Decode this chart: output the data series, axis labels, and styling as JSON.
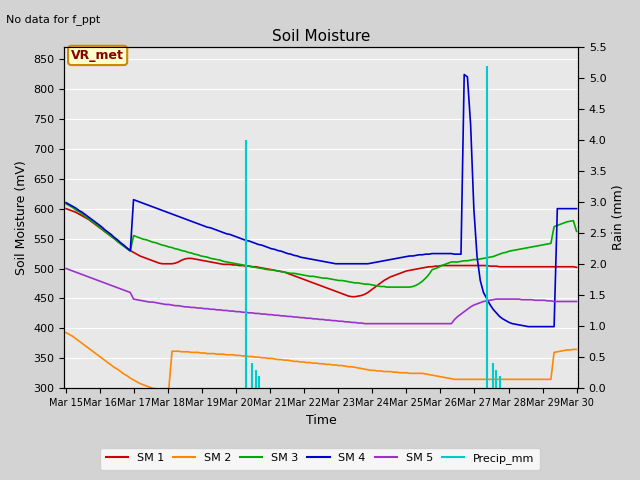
{
  "title": "Soil Moisture",
  "subtitle": "No data for f_ppt",
  "xlabel": "Time",
  "ylabel_left": "Soil Moisture (mV)",
  "ylabel_right": "Rain (mm)",
  "ylim_left": [
    300,
    870
  ],
  "ylim_right": [
    0.0,
    5.5
  ],
  "yticks_left": [
    300,
    350,
    400,
    450,
    500,
    550,
    600,
    650,
    700,
    750,
    800,
    850
  ],
  "yticks_right": [
    0.0,
    0.5,
    1.0,
    1.5,
    2.0,
    2.5,
    3.0,
    3.5,
    4.0,
    4.5,
    5.0,
    5.5
  ],
  "xtick_labels": [
    "Mar 15",
    "Mar 16",
    "Mar 17",
    "Mar 18",
    "Mar 19",
    "Mar 20",
    "Mar 21",
    "Mar 22",
    "Mar 23",
    "Mar 24",
    "Mar 25",
    "Mar 26",
    "Mar 27",
    "Mar 28",
    "Mar 29",
    "Mar 30"
  ],
  "vr_met_label": "VR_met",
  "colors": {
    "SM1": "#cc0000",
    "SM2": "#ff8800",
    "SM3": "#00aa00",
    "SM4": "#0000cc",
    "SM5": "#9933cc",
    "Precip": "#00cccc"
  },
  "num_points": 160,
  "days": 15,
  "SM1": [
    600,
    598,
    596,
    594,
    591,
    588,
    585,
    582,
    578,
    574,
    570,
    566,
    562,
    558,
    554,
    550,
    546,
    542,
    538,
    534,
    530,
    527,
    524,
    521,
    519,
    517,
    515,
    513,
    511,
    509,
    508,
    508,
    508,
    508,
    509,
    511,
    514,
    516,
    517,
    517,
    516,
    515,
    514,
    513,
    512,
    511,
    510,
    509,
    508,
    507,
    507,
    507,
    506,
    506,
    505,
    505,
    504,
    504,
    503,
    503,
    502,
    501,
    500,
    499,
    498,
    497,
    496,
    495,
    494,
    492,
    490,
    488,
    486,
    484,
    482,
    480,
    478,
    476,
    474,
    472,
    470,
    468,
    466,
    464,
    462,
    460,
    458,
    456,
    454,
    453,
    453,
    454,
    455,
    457,
    460,
    464,
    468,
    472,
    476,
    480,
    483,
    486,
    488,
    490,
    492,
    494,
    496,
    497,
    498,
    499,
    500,
    501,
    502,
    503,
    503,
    504,
    504,
    505,
    505,
    505,
    505,
    505,
    505,
    505,
    505,
    505,
    505,
    505,
    505,
    505,
    505,
    505,
    504,
    504,
    504,
    503,
    503,
    503,
    503,
    503,
    503,
    503,
    503,
    503,
    503,
    503,
    503,
    503,
    503,
    503,
    503,
    503,
    503,
    503,
    503,
    503,
    503,
    503,
    503,
    502
  ],
  "SM2": [
    393,
    390,
    387,
    383,
    379,
    375,
    371,
    367,
    363,
    359,
    355,
    351,
    347,
    343,
    339,
    335,
    332,
    328,
    324,
    321,
    317,
    314,
    311,
    308,
    306,
    304,
    302,
    300,
    299,
    299,
    299,
    299,
    300,
    362,
    362,
    362,
    361,
    361,
    361,
    360,
    360,
    360,
    359,
    359,
    358,
    358,
    358,
    357,
    357,
    357,
    356,
    356,
    356,
    355,
    355,
    354,
    354,
    353,
    353,
    352,
    352,
    351,
    351,
    350,
    350,
    349,
    348,
    348,
    347,
    347,
    346,
    345,
    345,
    344,
    344,
    343,
    343,
    342,
    342,
    341,
    341,
    340,
    340,
    339,
    339,
    338,
    338,
    337,
    336,
    336,
    335,
    334,
    333,
    332,
    331,
    330,
    330,
    329,
    329,
    328,
    328,
    328,
    327,
    327,
    326,
    326,
    326,
    325,
    325,
    325,
    325,
    325,
    324,
    323,
    322,
    321,
    320,
    319,
    318,
    317,
    316,
    315,
    315,
    315,
    315,
    315,
    315,
    315,
    315,
    315,
    315,
    315,
    315,
    315,
    315,
    315,
    315,
    315,
    315,
    315,
    315,
    315,
    315,
    315,
    315,
    315,
    315,
    315,
    315,
    315,
    315,
    315,
    360,
    361,
    362,
    363,
    364,
    364,
    365,
    365
  ],
  "SM3": [
    608,
    605,
    602,
    598,
    595,
    591,
    587,
    583,
    579,
    575,
    571,
    567,
    562,
    558,
    554,
    550,
    545,
    541,
    537,
    533,
    529,
    555,
    553,
    551,
    549,
    548,
    546,
    544,
    543,
    541,
    539,
    538,
    536,
    535,
    533,
    532,
    530,
    529,
    527,
    526,
    524,
    523,
    521,
    520,
    519,
    517,
    516,
    515,
    514,
    512,
    511,
    510,
    509,
    508,
    507,
    506,
    505,
    504,
    503,
    502,
    501,
    500,
    499,
    498,
    498,
    497,
    496,
    495,
    494,
    493,
    492,
    492,
    491,
    490,
    489,
    488,
    487,
    487,
    486,
    485,
    484,
    484,
    483,
    482,
    481,
    480,
    480,
    479,
    478,
    477,
    476,
    476,
    475,
    474,
    474,
    473,
    472,
    471,
    470,
    470,
    469,
    469,
    469,
    469,
    469,
    469,
    469,
    469,
    470,
    472,
    475,
    479,
    484,
    490,
    498,
    500,
    502,
    505,
    507,
    509,
    511,
    511,
    511,
    512,
    513,
    513,
    514,
    515,
    515,
    516,
    517,
    518,
    519,
    520,
    522,
    524,
    526,
    527,
    529,
    530,
    531,
    532,
    533,
    534,
    535,
    536,
    537,
    538,
    539,
    540,
    541,
    542,
    570,
    572,
    574,
    576,
    578,
    579,
    580,
    562
  ],
  "SM4": [
    610,
    607,
    604,
    601,
    597,
    594,
    590,
    586,
    582,
    578,
    574,
    570,
    565,
    561,
    557,
    552,
    548,
    543,
    539,
    534,
    530,
    615,
    613,
    611,
    609,
    607,
    605,
    603,
    601,
    599,
    597,
    595,
    593,
    591,
    589,
    587,
    585,
    583,
    581,
    579,
    577,
    575,
    573,
    571,
    569,
    568,
    566,
    564,
    562,
    560,
    558,
    557,
    555,
    553,
    551,
    549,
    547,
    546,
    544,
    542,
    540,
    539,
    537,
    535,
    533,
    532,
    530,
    529,
    527,
    525,
    524,
    522,
    521,
    519,
    518,
    517,
    516,
    515,
    514,
    513,
    512,
    511,
    510,
    509,
    508,
    508,
    508,
    508,
    508,
    508,
    508,
    508,
    508,
    508,
    508,
    509,
    510,
    511,
    512,
    513,
    514,
    515,
    516,
    517,
    518,
    519,
    520,
    521,
    521,
    522,
    523,
    523,
    524,
    524,
    525,
    525,
    525,
    525,
    525,
    525,
    525,
    524,
    524,
    524,
    824,
    820,
    740,
    600,
    520,
    480,
    460,
    450,
    440,
    432,
    426,
    420,
    416,
    413,
    410,
    408,
    407,
    406,
    405,
    404,
    403,
    403,
    403,
    403,
    403,
    403,
    403,
    403,
    403,
    600,
    600,
    600,
    600,
    600,
    600,
    600
  ],
  "SM5": [
    500,
    498,
    496,
    494,
    492,
    490,
    488,
    486,
    484,
    482,
    480,
    478,
    476,
    474,
    472,
    470,
    468,
    466,
    464,
    462,
    460,
    449,
    448,
    447,
    446,
    445,
    444,
    444,
    443,
    442,
    441,
    440,
    440,
    439,
    438,
    438,
    437,
    436,
    436,
    435,
    435,
    434,
    434,
    433,
    433,
    432,
    432,
    431,
    431,
    430,
    430,
    429,
    429,
    428,
    428,
    427,
    427,
    426,
    426,
    425,
    425,
    424,
    424,
    423,
    423,
    422,
    422,
    421,
    421,
    420,
    420,
    419,
    419,
    418,
    418,
    417,
    417,
    416,
    416,
    415,
    415,
    414,
    414,
    413,
    413,
    412,
    412,
    411,
    411,
    410,
    410,
    409,
    409,
    408,
    408,
    408,
    408,
    408,
    408,
    408,
    408,
    408,
    408,
    408,
    408,
    408,
    408,
    408,
    408,
    408,
    408,
    408,
    408,
    408,
    408,
    408,
    408,
    408,
    408,
    408,
    408,
    415,
    420,
    424,
    428,
    432,
    436,
    439,
    441,
    443,
    445,
    446,
    447,
    448,
    449,
    449,
    449,
    449,
    449,
    449,
    449,
    449,
    448,
    448,
    448,
    448,
    447,
    447,
    447,
    447,
    446,
    446,
    445,
    445,
    445,
    445,
    445,
    445,
    445,
    445
  ],
  "Precip": [
    0,
    0,
    0,
    0,
    0,
    0,
    0,
    0,
    0,
    0,
    0,
    0,
    0,
    0,
    0,
    0,
    0,
    0,
    0,
    0,
    0,
    0,
    0,
    0,
    0,
    0,
    0,
    0,
    0,
    0,
    0,
    0,
    0,
    0,
    0,
    0,
    0,
    0,
    0,
    0,
    0,
    0,
    0,
    0,
    0,
    0,
    0,
    0,
    0,
    0,
    0,
    0,
    0,
    0,
    0,
    0,
    4.0,
    0,
    0.4,
    0.3,
    0.2,
    0,
    0,
    0,
    0,
    0,
    0,
    0,
    0,
    0,
    0,
    0,
    0,
    0,
    0,
    0,
    0,
    0,
    0,
    0,
    0,
    0,
    0,
    0,
    0,
    0,
    0,
    0,
    0,
    0,
    0,
    0,
    0,
    0,
    0,
    0,
    0,
    0,
    0,
    0,
    0,
    0,
    0,
    0,
    0,
    0,
    0,
    0,
    0,
    0,
    0,
    0,
    0,
    0,
    0,
    0,
    0,
    0,
    0,
    0,
    0,
    0,
    0,
    0,
    0,
    0,
    0,
    0,
    0,
    0,
    0,
    5.2,
    0,
    0.4,
    0.3,
    0.2,
    0,
    0,
    0,
    0,
    0,
    0,
    0,
    0,
    0,
    0,
    0,
    0,
    0,
    0,
    0,
    0,
    0,
    0,
    0,
    0,
    0,
    0,
    0,
    0,
    0,
    0,
    0,
    0,
    0,
    0,
    0,
    0
  ]
}
